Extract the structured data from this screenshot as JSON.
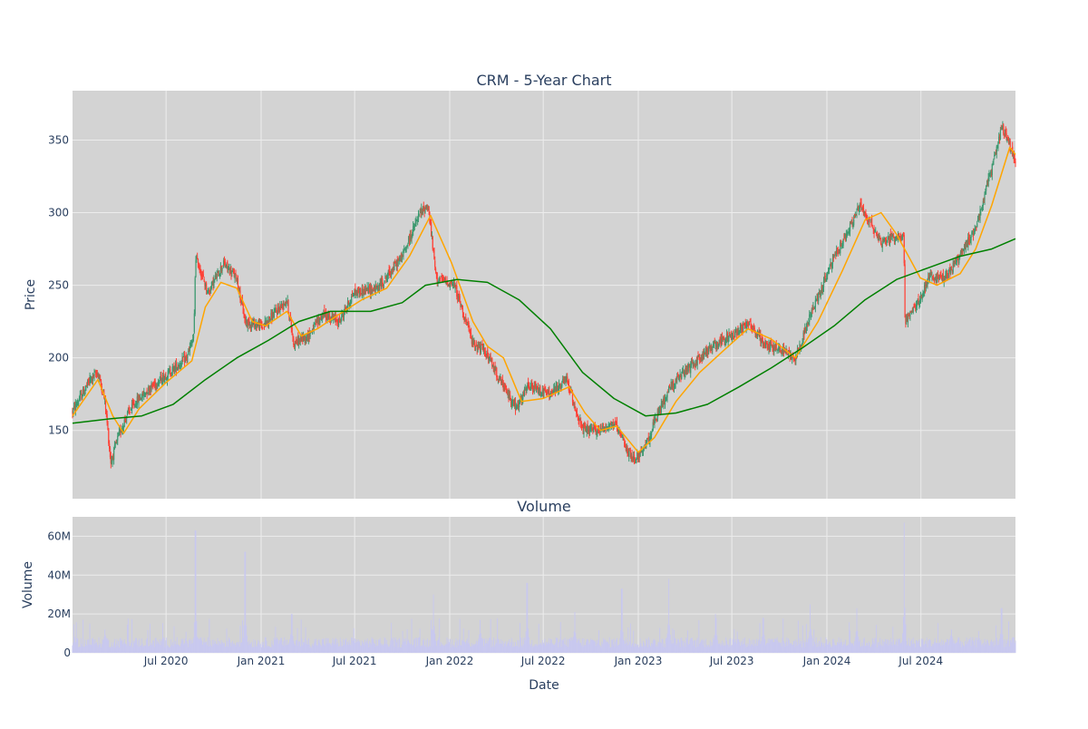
{
  "chart_data": [
    {
      "type": "candlestick",
      "title": "CRM - 5-Year Chart",
      "ylabel": "Price",
      "xlabel": "",
      "x_range": [
        "2020-01-02",
        "2024-12-31"
      ],
      "ylim": [
        103,
        384
      ],
      "y_ticks": [
        150,
        200,
        250,
        300,
        350
      ],
      "grid": true,
      "legend": "none",
      "colors": {
        "up": "#3d9970",
        "down": "#ff4136",
        "ma_short": "#ffa500",
        "ma_long": "#008000",
        "plot_bg": "#d3d3d3"
      },
      "price_path": [
        [
          "2020-01-02",
          163
        ],
        [
          "2020-02-05",
          185
        ],
        [
          "2020-02-20",
          190
        ],
        [
          "2020-03-05",
          170
        ],
        [
          "2020-03-16",
          128
        ],
        [
          "2020-03-30",
          145
        ],
        [
          "2020-04-15",
          160
        ],
        [
          "2020-05-05",
          170
        ],
        [
          "2020-06-01",
          180
        ],
        [
          "2020-07-01",
          188
        ],
        [
          "2020-08-10",
          200
        ],
        [
          "2020-08-24",
          215
        ],
        [
          "2020-08-27",
          270
        ],
        [
          "2020-09-20",
          245
        ],
        [
          "2020-10-20",
          265
        ],
        [
          "2020-11-15",
          255
        ],
        [
          "2020-12-01",
          225
        ],
        [
          "2021-01-04",
          222
        ],
        [
          "2021-02-20",
          240
        ],
        [
          "2021-03-05",
          210
        ],
        [
          "2021-04-01",
          215
        ],
        [
          "2021-05-01",
          230
        ],
        [
          "2021-06-01",
          225
        ],
        [
          "2021-06-30",
          245
        ],
        [
          "2021-08-15",
          248
        ],
        [
          "2021-10-01",
          270
        ],
        [
          "2021-11-05",
          300
        ],
        [
          "2021-11-20",
          305
        ],
        [
          "2021-12-06",
          255
        ],
        [
          "2022-01-10",
          250
        ],
        [
          "2022-02-15",
          210
        ],
        [
          "2022-03-10",
          205
        ],
        [
          "2022-04-15",
          180
        ],
        [
          "2022-05-10",
          165
        ],
        [
          "2022-06-01",
          180
        ],
        [
          "2022-07-15",
          175
        ],
        [
          "2022-08-15",
          185
        ],
        [
          "2022-09-15",
          150
        ],
        [
          "2022-10-15",
          150
        ],
        [
          "2022-11-15",
          155
        ],
        [
          "2022-12-20",
          130
        ],
        [
          "2023-01-10",
          135
        ],
        [
          "2023-02-01",
          155
        ],
        [
          "2023-03-03",
          180
        ],
        [
          "2023-04-15",
          195
        ],
        [
          "2023-05-31",
          210
        ],
        [
          "2023-06-30",
          215
        ],
        [
          "2023-08-01",
          225
        ],
        [
          "2023-09-01",
          210
        ],
        [
          "2023-10-10",
          205
        ],
        [
          "2023-11-01",
          200
        ],
        [
          "2023-12-01",
          230
        ],
        [
          "2024-01-10",
          265
        ],
        [
          "2024-02-15",
          290
        ],
        [
          "2024-03-05",
          305
        ],
        [
          "2024-04-15",
          280
        ],
        [
          "2024-05-29",
          285
        ],
        [
          "2024-05-31",
          225
        ],
        [
          "2024-06-30",
          240
        ],
        [
          "2024-07-15",
          255
        ],
        [
          "2024-08-15",
          255
        ],
        [
          "2024-09-15",
          270
        ],
        [
          "2024-10-15",
          290
        ],
        [
          "2024-11-15",
          330
        ],
        [
          "2024-12-05",
          360
        ],
        [
          "2024-12-31",
          335
        ]
      ],
      "series": [
        {
          "key": "ma_short",
          "points": [
            [
              "2020-01-02",
              160
            ],
            [
              "2020-02-20",
              185
            ],
            [
              "2020-03-20",
              160
            ],
            [
              "2020-04-10",
              148
            ],
            [
              "2020-05-10",
              165
            ],
            [
              "2020-07-01",
              183
            ],
            [
              "2020-08-20",
              198
            ],
            [
              "2020-09-15",
              235
            ],
            [
              "2020-10-15",
              252
            ],
            [
              "2020-11-15",
              248
            ],
            [
              "2020-12-15",
              225
            ],
            [
              "2021-01-10",
              222
            ],
            [
              "2021-02-20",
              232
            ],
            [
              "2021-03-20",
              215
            ],
            [
              "2021-04-20",
              220
            ],
            [
              "2021-06-01",
              230
            ],
            [
              "2021-07-15",
              240
            ],
            [
              "2021-09-01",
              248
            ],
            [
              "2021-10-15",
              270
            ],
            [
              "2021-11-25",
              298
            ],
            [
              "2022-01-05",
              265
            ],
            [
              "2022-02-15",
              225
            ],
            [
              "2022-03-15",
              208
            ],
            [
              "2022-04-15",
              200
            ],
            [
              "2022-05-20",
              170
            ],
            [
              "2022-07-01",
              172
            ],
            [
              "2022-08-20",
              180
            ],
            [
              "2022-09-20",
              162
            ],
            [
              "2022-10-20",
              150
            ],
            [
              "2022-11-20",
              153
            ],
            [
              "2023-01-01",
              135
            ],
            [
              "2023-02-01",
              145
            ],
            [
              "2023-03-15",
              170
            ],
            [
              "2023-04-30",
              190
            ],
            [
              "2023-06-15",
              205
            ],
            [
              "2023-08-01",
              220
            ],
            [
              "2023-09-15",
              213
            ],
            [
              "2023-11-01",
              200
            ],
            [
              "2023-12-15",
              225
            ],
            [
              "2024-01-31",
              260
            ],
            [
              "2024-03-15",
              295
            ],
            [
              "2024-04-15",
              300
            ],
            [
              "2024-05-15",
              285
            ],
            [
              "2024-06-30",
              255
            ],
            [
              "2024-08-01",
              250
            ],
            [
              "2024-09-15",
              258
            ],
            [
              "2024-10-15",
              275
            ],
            [
              "2024-11-15",
              305
            ],
            [
              "2024-12-20",
              345
            ],
            [
              "2024-12-31",
              340
            ]
          ]
        },
        {
          "key": "ma_long",
          "points": [
            [
              "2020-01-02",
              155
            ],
            [
              "2020-03-15",
              158
            ],
            [
              "2020-05-15",
              160
            ],
            [
              "2020-07-15",
              168
            ],
            [
              "2020-09-15",
              185
            ],
            [
              "2020-11-15",
              200
            ],
            [
              "2021-01-15",
              212
            ],
            [
              "2021-03-15",
              225
            ],
            [
              "2021-05-15",
              232
            ],
            [
              "2021-08-01",
              232
            ],
            [
              "2021-10-01",
              238
            ],
            [
              "2021-11-15",
              250
            ],
            [
              "2022-01-15",
              254
            ],
            [
              "2022-03-15",
              252
            ],
            [
              "2022-05-15",
              240
            ],
            [
              "2022-07-15",
              220
            ],
            [
              "2022-09-15",
              190
            ],
            [
              "2022-11-15",
              172
            ],
            [
              "2023-01-15",
              160
            ],
            [
              "2023-03-15",
              162
            ],
            [
              "2023-05-15",
              168
            ],
            [
              "2023-07-15",
              180
            ],
            [
              "2023-09-15",
              193
            ],
            [
              "2023-11-15",
              207
            ],
            [
              "2024-01-15",
              222
            ],
            [
              "2024-03-15",
              240
            ],
            [
              "2024-05-15",
              254
            ],
            [
              "2024-07-15",
              262
            ],
            [
              "2024-09-15",
              270
            ],
            [
              "2024-11-15",
              275
            ],
            [
              "2024-12-31",
              282
            ]
          ]
        }
      ]
    },
    {
      "type": "bar",
      "title": "Volume",
      "xlabel": "Date",
      "ylabel": "Volume",
      "ylim": [
        0,
        70000000
      ],
      "y_ticks": [
        0,
        20000000,
        40000000,
        60000000
      ],
      "y_tick_labels": [
        "0",
        "20M",
        "40M",
        "60M"
      ],
      "x_ticks": [
        "2020-07-01",
        "2021-01-01",
        "2021-07-01",
        "2022-01-01",
        "2022-07-01",
        "2023-01-01",
        "2023-07-01",
        "2024-01-01",
        "2024-07-01"
      ],
      "x_tick_labels": [
        "Jul 2020",
        "Jan 2021",
        "Jul 2021",
        "Jan 2022",
        "Jul 2022",
        "Jan 2023",
        "Jul 2023",
        "Jan 2024",
        "Jul 2024"
      ],
      "grid": true,
      "colors": {
        "bar": "#c8c8f0",
        "plot_bg": "#d3d3d3"
      },
      "base_volume": 6000000,
      "spikes": [
        [
          "2020-03-05",
          12000000
        ],
        [
          "2020-08-27",
          63000000
        ],
        [
          "2020-12-01",
          52000000
        ],
        [
          "2020-12-02",
          25000000
        ],
        [
          "2021-03-01",
          20000000
        ],
        [
          "2021-12-01",
          30000000
        ],
        [
          "2022-03-01",
          17000000
        ],
        [
          "2022-05-31",
          36000000
        ],
        [
          "2022-08-31",
          21000000
        ],
        [
          "2022-11-30",
          33000000
        ],
        [
          "2023-03-01",
          38000000
        ],
        [
          "2023-05-31",
          20000000
        ],
        [
          "2023-08-31",
          18000000
        ],
        [
          "2023-11-30",
          25000000
        ],
        [
          "2024-02-28",
          23000000
        ],
        [
          "2024-05-30",
          67000000
        ],
        [
          "2024-08-29",
          12000000
        ],
        [
          "2024-12-04",
          23000000
        ]
      ]
    }
  ]
}
